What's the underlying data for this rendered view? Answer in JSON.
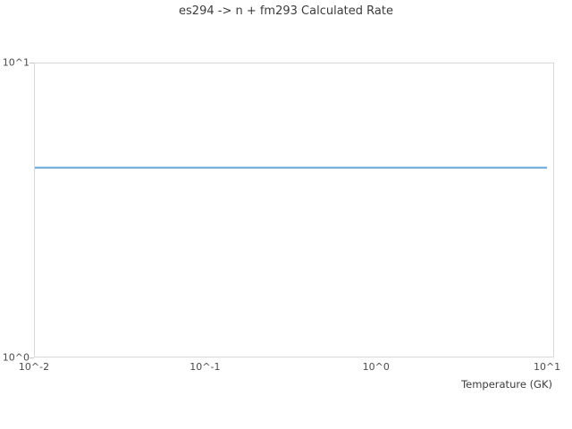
{
  "chart_data": {
    "type": "line",
    "title": "es294 -> n + fm293 Calculated Rate",
    "xlabel": "Temperature (GK)",
    "ylabel": "",
    "xscale": "log",
    "yscale": "log",
    "xlim": [
      0.01,
      11
    ],
    "ylim": [
      1,
      10
    ],
    "grid": false,
    "legend": false,
    "xticks": [
      {
        "value": 0.01,
        "label": "10^-2"
      },
      {
        "value": 0.1,
        "label": "10^-1"
      },
      {
        "value": 1,
        "label": "10^0"
      },
      {
        "value": 10,
        "label": "10^1"
      }
    ],
    "yticks": [
      {
        "value": 1,
        "label": "10^0"
      },
      {
        "value": 10,
        "label": "10^1"
      }
    ],
    "series": [
      {
        "name": "calculated rate",
        "color": "#64a5d8",
        "stroke_width": 2,
        "x": [
          0.01,
          10
        ],
        "y": [
          4.4,
          4.4
        ]
      }
    ]
  },
  "colors": {
    "background": "#ffffff",
    "axis_border": "#d9d9d9",
    "tick_mark": "#c9c9c9",
    "tick_text": "#4a4a4a",
    "title_text": "#3c3c3c",
    "line": "#64a5d8"
  }
}
